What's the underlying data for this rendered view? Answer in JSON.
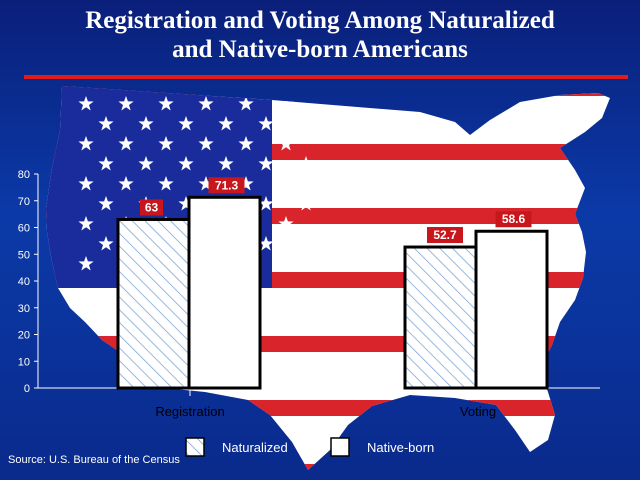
{
  "title": {
    "line1": "Registration and Voting Among Naturalized",
    "line2": "and Native-born Americans"
  },
  "source": "Source: U.S. Bureau of the Census",
  "colors": {
    "background": "#0b2f96",
    "flag_red": "#d8242a",
    "flag_white": "#ffffff",
    "canton_blue": "#1a2c9c",
    "title_rule": "#e21b1b",
    "label_box": "#c8171c",
    "hatch": "#7ea6d6"
  },
  "chart_data": {
    "type": "bar",
    "title": "Registration and Voting Among Naturalized and Native-born Americans",
    "categories": [
      "Registration",
      "Voting"
    ],
    "series": [
      {
        "name": "Naturalized",
        "values": [
          63,
          52.7
        ]
      },
      {
        "name": "Native-born",
        "values": [
          71.3,
          58.6
        ]
      }
    ],
    "data_labels": [
      [
        "63",
        "71.3"
      ],
      [
        "52.7",
        "58.6"
      ]
    ],
    "ylim": [
      0,
      80
    ],
    "yticks": [
      0,
      10,
      20,
      30,
      40,
      50,
      60,
      70,
      80
    ],
    "xlabel": "",
    "ylabel": "",
    "legend_position": "bottom",
    "grid": false
  }
}
